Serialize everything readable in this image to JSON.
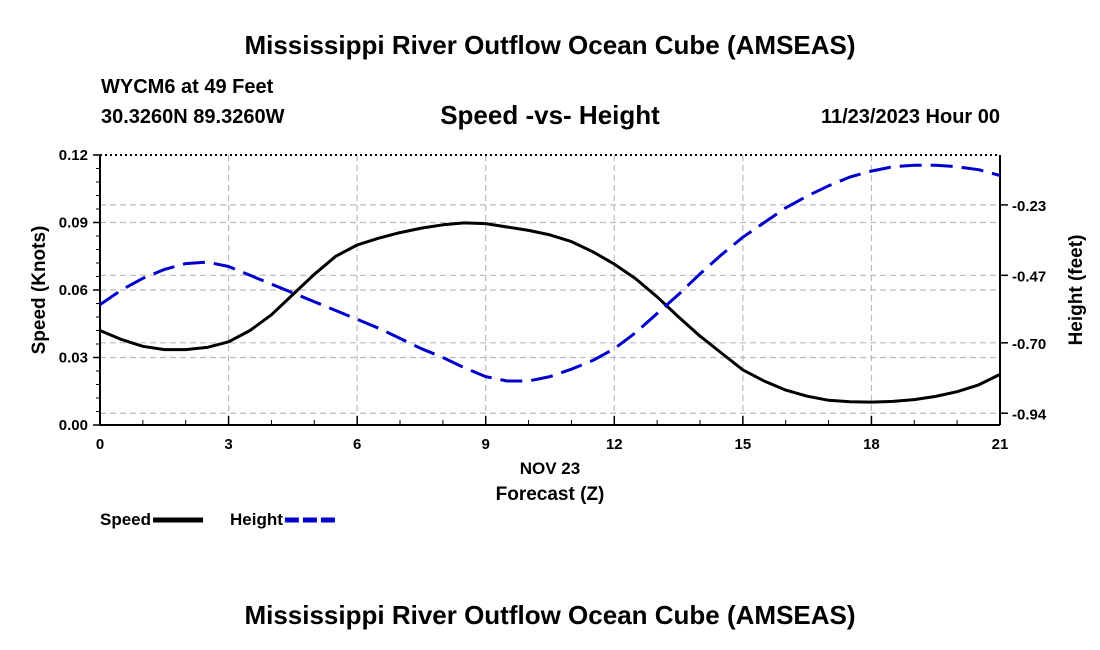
{
  "title": "Mississippi River Outflow Ocean Cube (AMSEAS)",
  "footer_title": "Mississippi River Outflow Ocean Cube (AMSEAS)",
  "station": "WYCM6 at 49 Feet",
  "coords": "30.3260N  89.3260W",
  "date": "11/23/2023 Hour 00",
  "chart_data": {
    "type": "line",
    "title": "Speed -vs- Height",
    "xlabel_date": "NOV 23",
    "xlabel": "Forecast (Z)",
    "ylabel": "Speed (Knots)",
    "ylabel_right": "Height (feet)",
    "xlim": [
      0,
      21
    ],
    "ylim": [
      0,
      0.12
    ],
    "ylim_right": [
      -0.98,
      -0.06
    ],
    "x_ticks": [
      0,
      3,
      6,
      9,
      12,
      15,
      18,
      21
    ],
    "x_tick_labels": [
      "0",
      "3",
      "6",
      "9",
      "12",
      "15",
      "18",
      "21"
    ],
    "y_ticks": [
      0,
      0.03,
      0.06,
      0.09,
      0.12
    ],
    "y_tick_labels": [
      "0.00",
      "0.03",
      "0.06",
      "0.09",
      "0.12"
    ],
    "y_right_ticks": [
      -0.23,
      -0.47,
      -0.7,
      -0.94
    ],
    "y_right_tick_labels": [
      "-0.23",
      "-0.47",
      "-0.70",
      "-0.94"
    ],
    "grid": true,
    "series": [
      {
        "name": "Speed",
        "axis": "left",
        "color": "#000000",
        "dash": "solid",
        "x": [
          0,
          0.5,
          1,
          1.5,
          2,
          2.5,
          3,
          3.5,
          4,
          4.5,
          5,
          5.5,
          6,
          6.5,
          7,
          7.5,
          8,
          8.5,
          9,
          9.5,
          10,
          10.5,
          11,
          11.5,
          12,
          12.5,
          13,
          13.5,
          14,
          14.5,
          15,
          15.5,
          16,
          16.5,
          17,
          17.5,
          18,
          18.5,
          19,
          19.5,
          20,
          20.5,
          21
        ],
        "values": [
          0.042,
          0.038,
          0.035,
          0.0335,
          0.0335,
          0.0345,
          0.037,
          0.042,
          0.049,
          0.058,
          0.067,
          0.075,
          0.08,
          0.083,
          0.0855,
          0.0875,
          0.089,
          0.0898,
          0.0895,
          0.088,
          0.0865,
          0.0845,
          0.0815,
          0.077,
          0.0715,
          0.065,
          0.057,
          0.048,
          0.0395,
          0.032,
          0.0245,
          0.0195,
          0.0155,
          0.0128,
          0.011,
          0.0103,
          0.0102,
          0.0105,
          0.0113,
          0.0127,
          0.0148,
          0.0178,
          0.0225
        ]
      },
      {
        "name": "Height",
        "axis": "right",
        "color": "#0000cc",
        "dash": "dashed",
        "x": [
          0,
          0.5,
          1,
          1.5,
          2,
          2.5,
          3,
          3.5,
          4,
          4.5,
          5,
          5.5,
          6,
          6.5,
          7,
          7.5,
          8,
          8.5,
          9,
          9.5,
          10,
          10.5,
          11,
          11.5,
          12,
          12.5,
          13,
          13.5,
          14,
          14.5,
          15,
          15.5,
          16,
          16.5,
          17,
          17.5,
          18,
          18.5,
          19,
          19.5,
          20,
          20.5,
          21
        ],
        "values": [
          -0.57,
          -0.52,
          -0.48,
          -0.45,
          -0.43,
          -0.425,
          -0.44,
          -0.47,
          -0.5,
          -0.53,
          -0.56,
          -0.59,
          -0.62,
          -0.65,
          -0.685,
          -0.72,
          -0.75,
          -0.785,
          -0.815,
          -0.83,
          -0.83,
          -0.815,
          -0.79,
          -0.76,
          -0.72,
          -0.665,
          -0.6,
          -0.535,
          -0.465,
          -0.4,
          -0.34,
          -0.29,
          -0.24,
          -0.2,
          -0.165,
          -0.135,
          -0.115,
          -0.1,
          -0.095,
          -0.095,
          -0.1,
          -0.11,
          -0.13
        ]
      }
    ],
    "legend": {
      "placement": "bottom-left",
      "items": [
        {
          "label": "Speed",
          "color": "#000000",
          "dash": "solid"
        },
        {
          "label": "Height",
          "color": "#0000cc",
          "dash": "dashed"
        }
      ]
    }
  }
}
